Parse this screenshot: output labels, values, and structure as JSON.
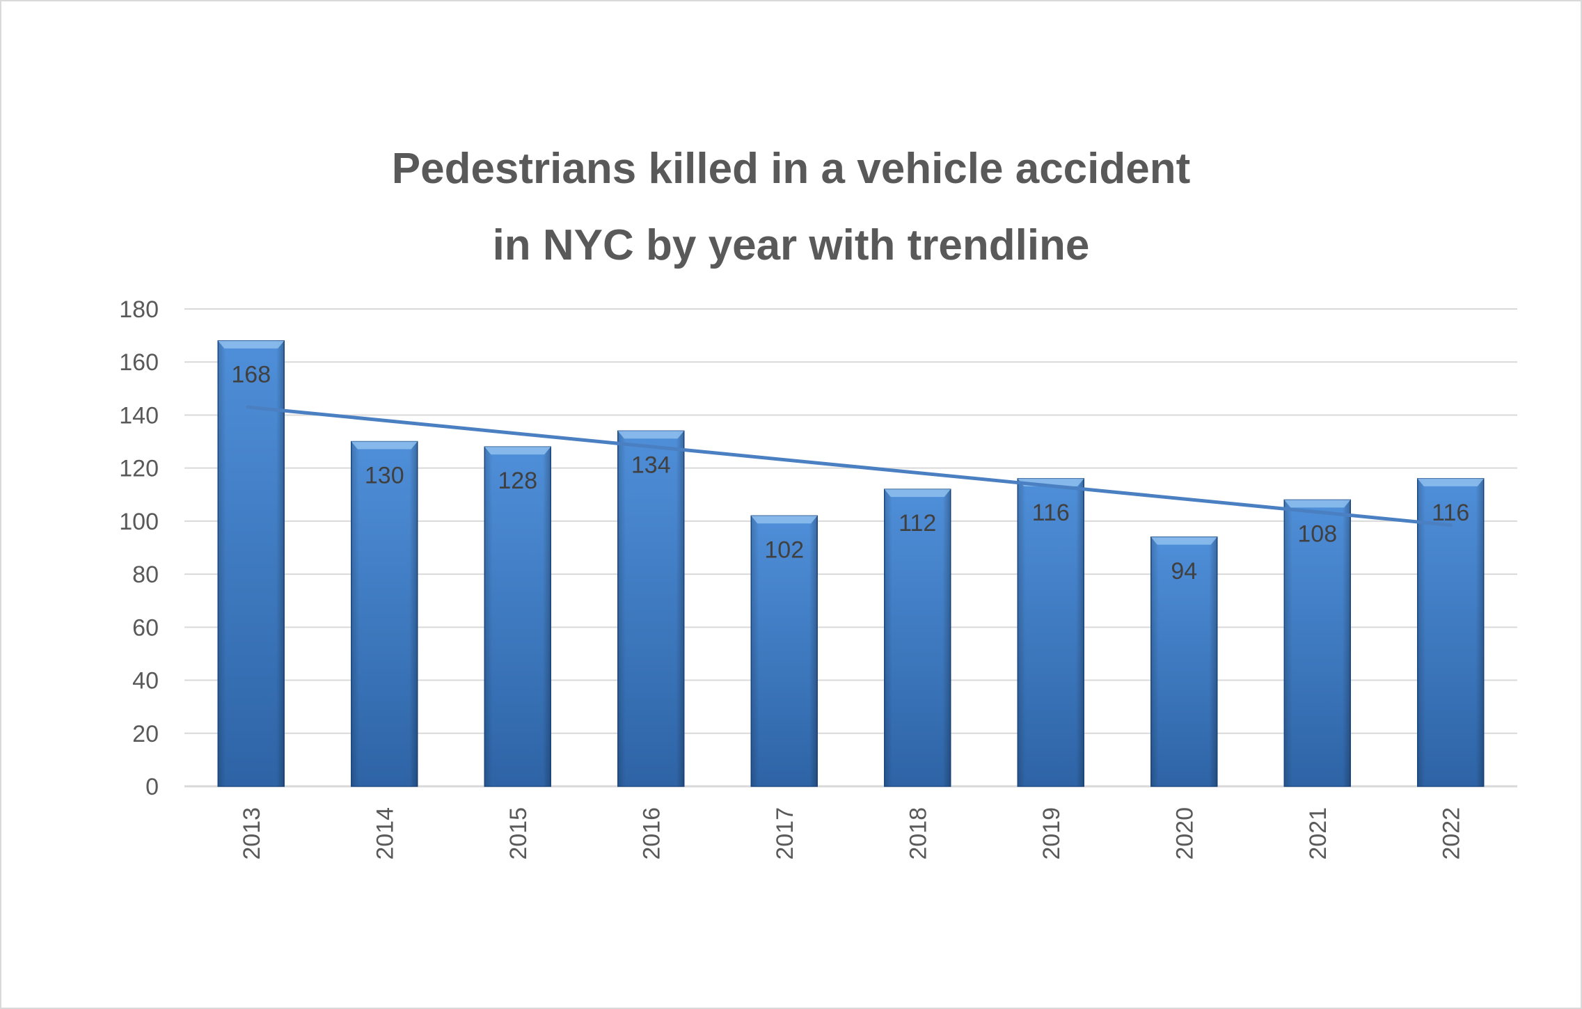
{
  "chart_data": {
    "type": "bar",
    "title_line1": "Pedestrians killed in a vehicle accident",
    "title_line2": "in NYC  by year with trendline",
    "categories": [
      "2013",
      "2014",
      "2015",
      "2016",
      "2017",
      "2018",
      "2019",
      "2020",
      "2021",
      "2022"
    ],
    "values": [
      168,
      130,
      128,
      134,
      102,
      112,
      116,
      94,
      108,
      116
    ],
    "ylim": [
      0,
      180
    ],
    "yticks": [
      0,
      20,
      40,
      60,
      80,
      100,
      120,
      140,
      160,
      180
    ],
    "grid": true,
    "trendline": {
      "type": "linear",
      "start": 143,
      "end": 98.5
    },
    "colors": {
      "bar_top": "#4f8fd9",
      "bar_bottom": "#2e64a6",
      "bar_edge": "#1f4e8c",
      "trendline": "#4a7fc1",
      "grid": "#d9d9d9",
      "text": "#595959"
    }
  }
}
